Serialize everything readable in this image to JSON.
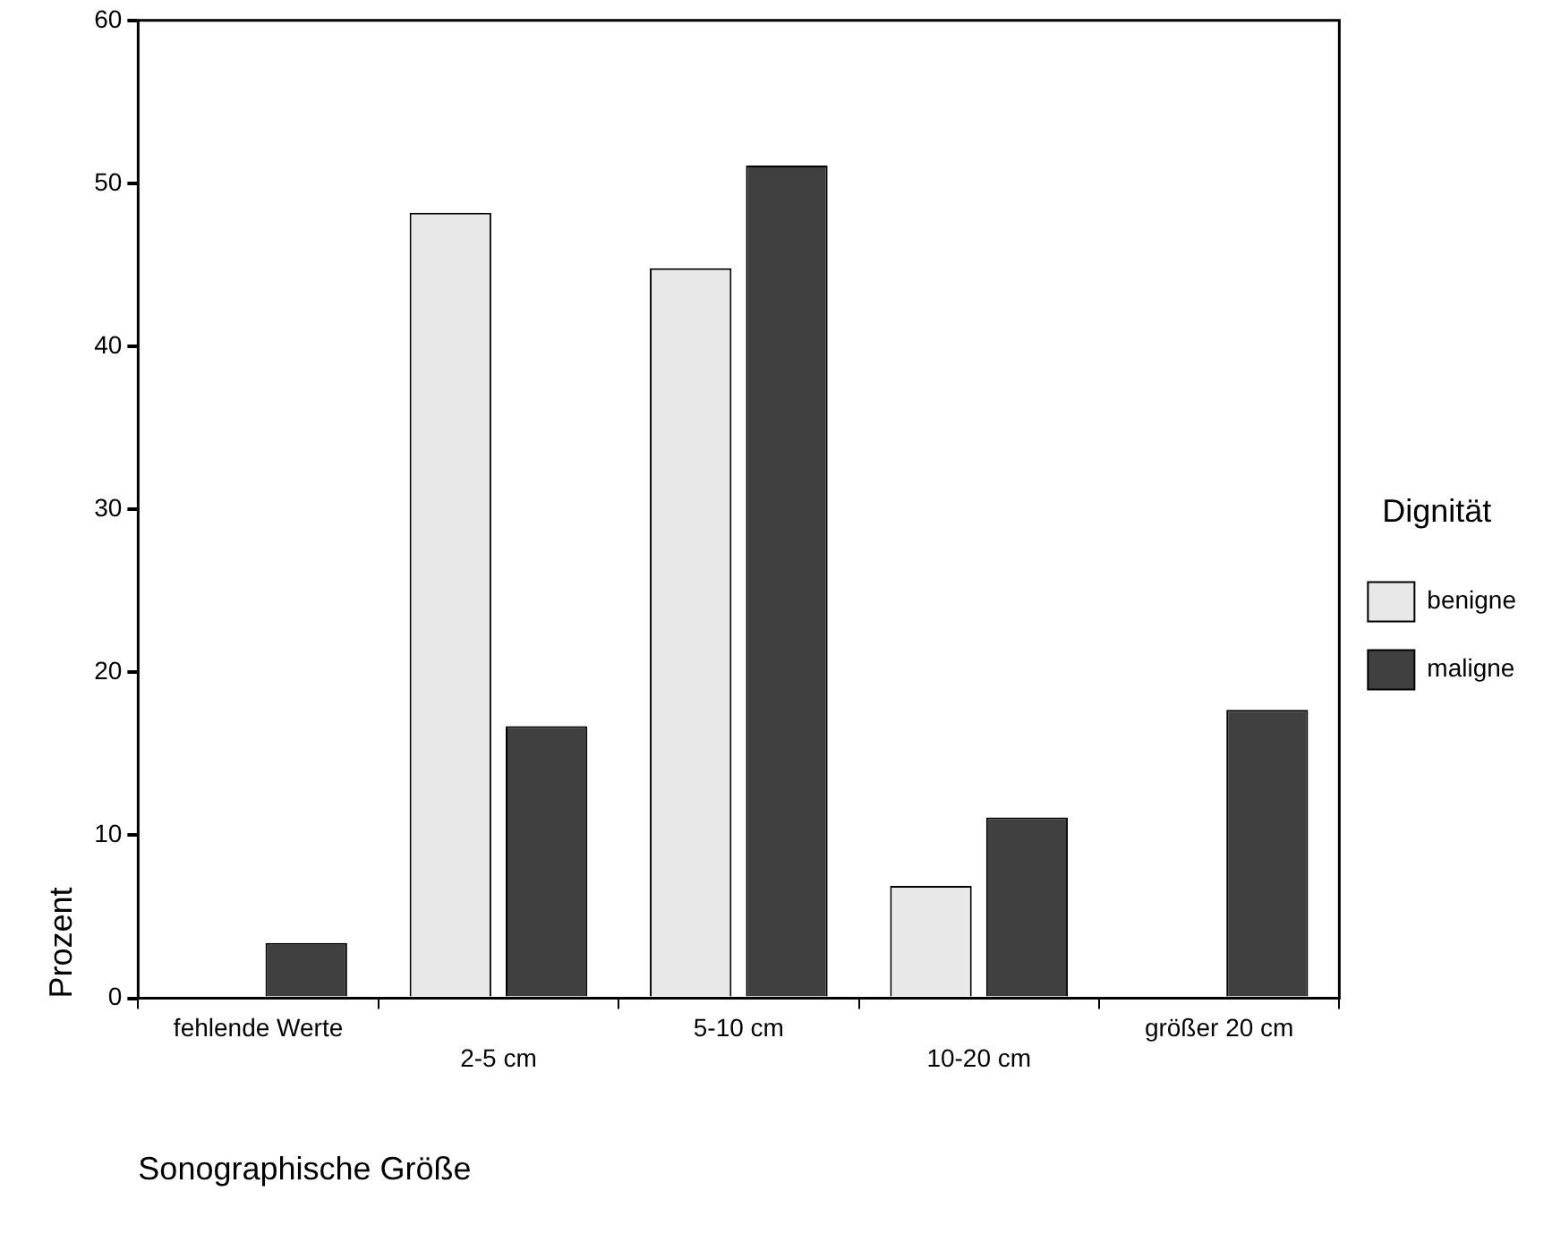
{
  "chart_data": {
    "type": "bar",
    "xlabel": "Sonographische Größe",
    "ylabel": "Prozent",
    "legend_title": "Dignität",
    "categories": [
      "fehlende Werte",
      "2-5 cm",
      "5-10 cm",
      "10-20 cm",
      "größer 20 cm"
    ],
    "series": [
      {
        "name": "benigne",
        "color": "#e8e8e8",
        "values": [
          0,
          48.2,
          44.8,
          6.9,
          0
        ]
      },
      {
        "name": "maligne",
        "color": "#404040",
        "values": [
          3.4,
          16.7,
          51.1,
          11.1,
          17.7
        ]
      }
    ],
    "ylim": [
      0,
      60
    ],
    "yticks": [
      0,
      10,
      20,
      30,
      40,
      50,
      60
    ],
    "grid": false,
    "legend": "right"
  }
}
